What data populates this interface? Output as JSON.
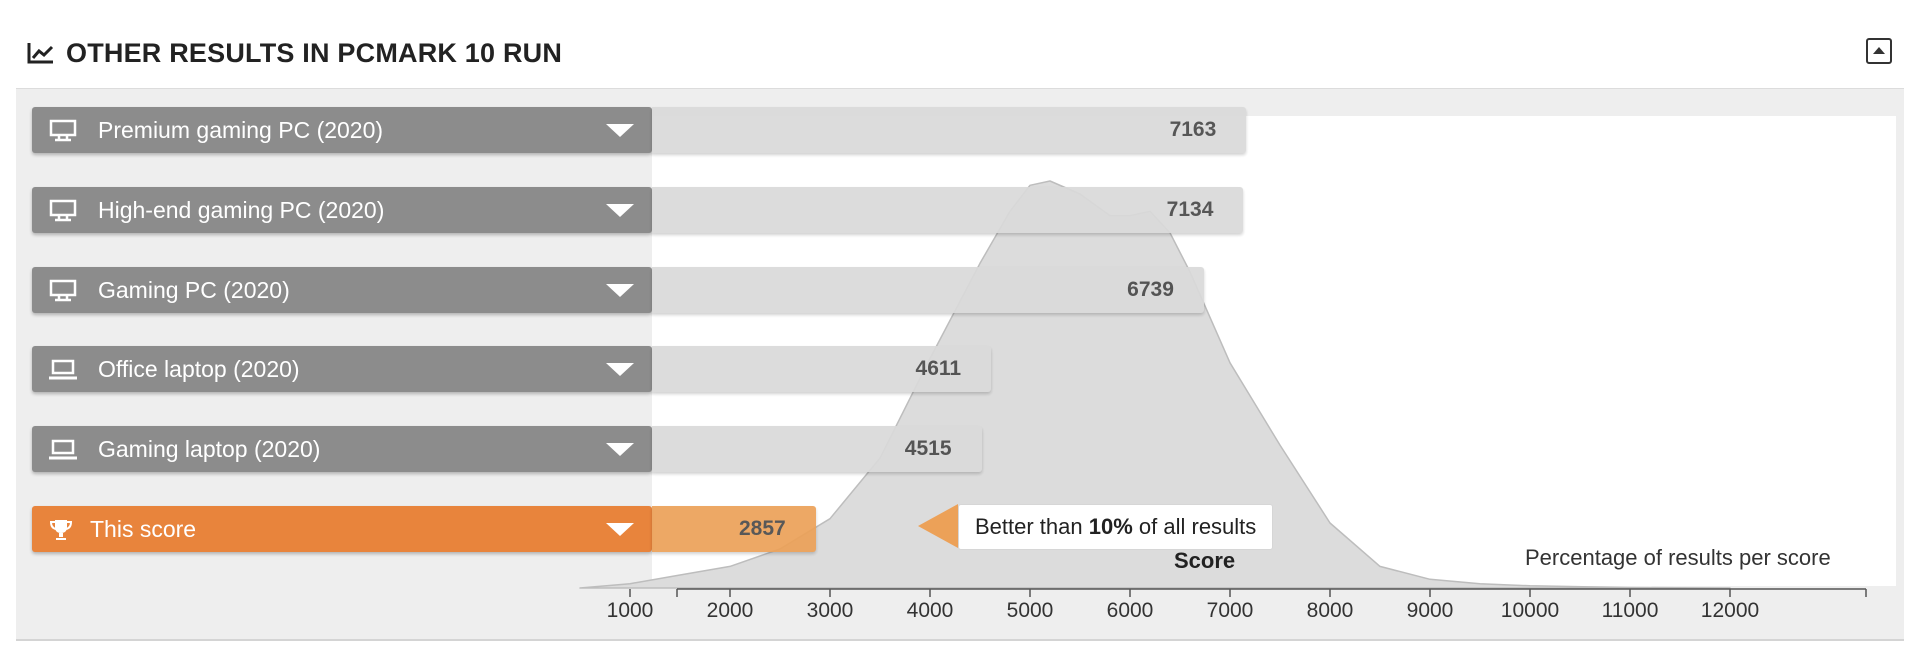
{
  "header": {
    "title": "OTHER RESULTS IN PCMARK 10 RUN"
  },
  "icons": {
    "title": "line-chart-icon",
    "collapse": "collapse-up-icon",
    "desktop": "desktop-pc-icon",
    "laptop": "laptop-icon",
    "this_score": "trophy-icon",
    "expand": "chevron-down-icon"
  },
  "colors": {
    "gray_label": "#8c8c8c",
    "orange": "#e8843c",
    "gray_bar": "#dadada",
    "orange_bar": "#eca158",
    "distribution": "#dcdcdc"
  },
  "callout": {
    "prefix": "Better than ",
    "percent": "10%",
    "suffix": " of all results"
  },
  "chart_data": {
    "type": "bar",
    "orientation": "horizontal",
    "title": "OTHER RESULTS IN PCMARK 10 RUN",
    "xlabel": "Score",
    "secondary_label": "Percentage of results per score",
    "xlim": [
      500,
      12600
    ],
    "x_ticks": [
      1000,
      2000,
      3000,
      4000,
      5000,
      6000,
      7000,
      8000,
      9000,
      10000,
      11000,
      12000
    ],
    "categories": [
      "Premium gaming PC (2020)",
      "High-end gaming PC (2020)",
      "Gaming PC (2020)",
      "Office laptop (2020)",
      "Gaming laptop (2020)",
      "This score"
    ],
    "category_icons": [
      "desktop",
      "desktop",
      "desktop",
      "laptop",
      "laptop",
      "trophy"
    ],
    "values": [
      7163,
      7134,
      6739,
      4611,
      4515,
      2857
    ],
    "highlight": "This score",
    "distribution": {
      "x": [
        500,
        1000,
        1500,
        2000,
        2500,
        3000,
        3500,
        4000,
        4500,
        4800,
        5000,
        5200,
        5500,
        5800,
        6000,
        6200,
        6400,
        6600,
        7000,
        7500,
        8000,
        8500,
        9000,
        9500,
        10000,
        11000,
        12000
      ],
      "y": [
        0,
        1,
        3,
        5,
        9,
        16,
        30,
        53,
        75,
        87,
        93,
        94,
        91,
        86,
        86,
        87,
        82,
        73,
        52,
        33,
        15,
        5,
        2,
        1,
        0.5,
        0.1,
        0
      ]
    }
  }
}
